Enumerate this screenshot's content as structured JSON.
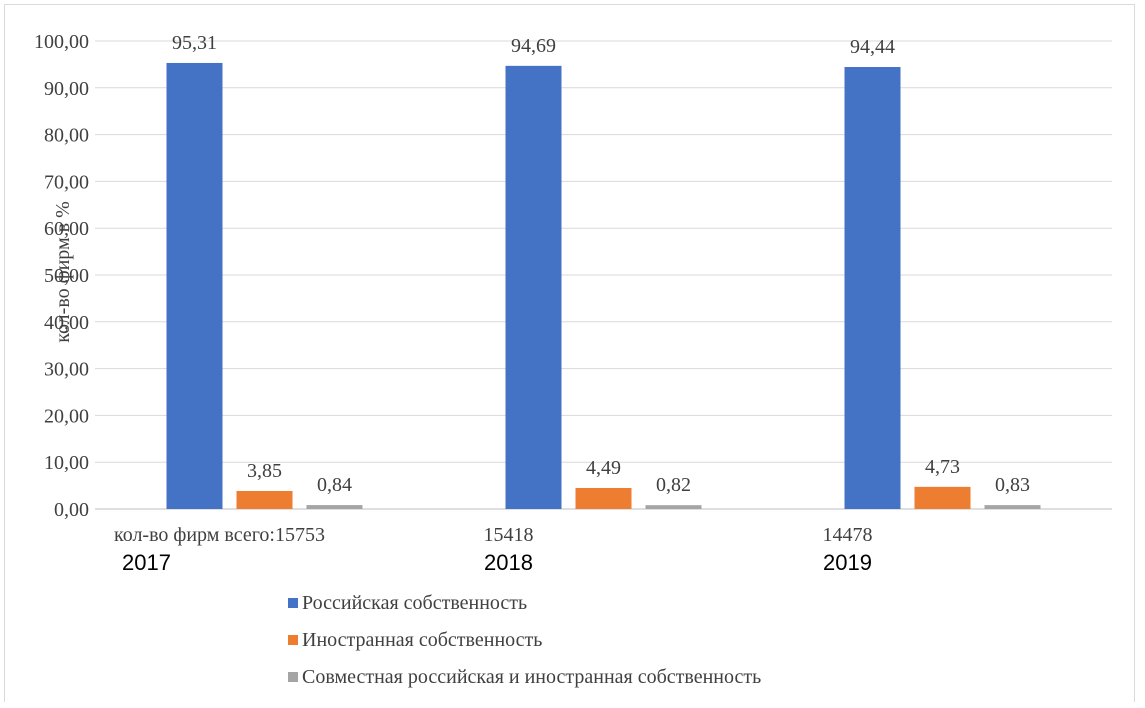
{
  "chart_data": {
    "type": "bar",
    "ylabel": "кол-во фирм в %",
    "ylim": [
      0,
      100
    ],
    "ytick_step": 10,
    "ytick_labels": [
      "0,00",
      "10,00",
      "20,00",
      "30,00",
      "40,00",
      "50,00",
      "60,00",
      "70,00",
      "80,00",
      "90,00",
      "100,00"
    ],
    "categories": [
      "2017",
      "2018",
      "2019"
    ],
    "firm_count_labels": [
      "кол-во фирм всего:15753",
      "15418",
      "14478"
    ],
    "series": [
      {
        "name": "Российская собственность",
        "color": "#4472C4",
        "values": [
          95.31,
          94.69,
          94.44
        ],
        "labels": [
          "95,31",
          "94,69",
          "94,44"
        ]
      },
      {
        "name": "Иностранная собственность",
        "color": "#ED7D31",
        "values": [
          3.85,
          4.49,
          4.73
        ],
        "labels": [
          "3,85",
          "4,49",
          "4,73"
        ]
      },
      {
        "name": "Совместная российская и иностранная собственность",
        "color": "#A5A5A5",
        "values": [
          0.84,
          0.82,
          0.83
        ],
        "labels": [
          "0,84",
          "0,82",
          "0,83"
        ]
      }
    ],
    "grid": true,
    "legend_position": "bottom"
  }
}
